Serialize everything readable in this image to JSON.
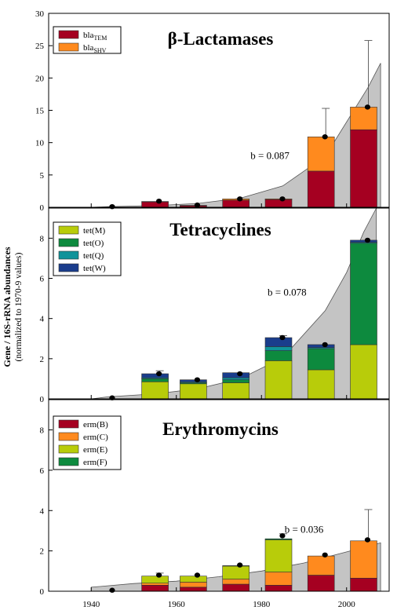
{
  "figure": {
    "ylabel_line1": "Gene / 16S-rRNA abundances",
    "ylabel_line2": "(normalized to 1970-9 values)",
    "x_ticks": [
      "1940",
      "1960",
      "1980",
      "2000"
    ]
  },
  "chart_data": [
    {
      "type": "bar",
      "stacked": true,
      "title": "β-Lactamases",
      "annotation": "b = 0.087",
      "legend": [
        {
          "main": "bla",
          "sub": "TEM",
          "color": "#a50021"
        },
        {
          "main": "bla",
          "sub": "SHV",
          "color": "#ff8a1e"
        }
      ],
      "x": [
        1944,
        1955,
        1964,
        1974,
        1984,
        1994,
        2004
      ],
      "series": [
        {
          "name": "blaTEM",
          "color": "#a50021",
          "values": [
            0,
            0.85,
            0.25,
            1.1,
            1.2,
            5.6,
            12.0
          ]
        },
        {
          "name": "blaSHV",
          "color": "#ff8a1e",
          "values": [
            0,
            0.05,
            0.05,
            0.2,
            0.1,
            5.3,
            3.5
          ]
        }
      ],
      "points": [
        0.1,
        0.95,
        0.35,
        1.3,
        1.3,
        10.9,
        15.5
      ],
      "error_up": [
        null,
        null,
        null,
        null,
        null,
        15.3,
        25.8
      ],
      "ylim": [
        0,
        30
      ],
      "yticks": [
        0,
        5,
        10,
        15,
        20,
        25,
        30
      ],
      "fit_label_pos": [
        1982,
        7.5
      ],
      "fit": {
        "type": "exponential",
        "b": 0.087,
        "points": [
          [
            1940,
            0.0
          ],
          [
            1944,
            0.1
          ],
          [
            1955,
            0.25
          ],
          [
            1965,
            0.6
          ],
          [
            1975,
            1.4
          ],
          [
            1985,
            3.3
          ],
          [
            1995,
            7.9
          ],
          [
            2005,
            18.5
          ],
          [
            2008,
            22.3
          ]
        ]
      }
    },
    {
      "type": "bar",
      "stacked": true,
      "title": "Tetracyclines",
      "annotation": "b = 0.078",
      "legend": [
        {
          "main": "tet(M)",
          "sub": "",
          "color": "#b8cc0a"
        },
        {
          "main": "tet(O)",
          "sub": "",
          "color": "#0d8a3e"
        },
        {
          "main": "tet(Q)",
          "sub": "",
          "color": "#10939a"
        },
        {
          "main": "tet(W)",
          "sub": "",
          "color": "#1a3d8c"
        }
      ],
      "x": [
        1944,
        1955,
        1964,
        1974,
        1984,
        1994,
        2004
      ],
      "series": [
        {
          "name": "tet(M)",
          "color": "#b8cc0a",
          "values": [
            0,
            0.85,
            0.75,
            0.8,
            1.9,
            1.45,
            2.7
          ]
        },
        {
          "name": "tet(O)",
          "color": "#0d8a3e",
          "values": [
            0,
            0.15,
            0.05,
            0.15,
            0.5,
            1.05,
            5.05
          ]
        },
        {
          "name": "tet(Q)",
          "color": "#10939a",
          "values": [
            0,
            0.05,
            0.05,
            0.1,
            0.2,
            0.05,
            0.05
          ]
        },
        {
          "name": "tet(W)",
          "color": "#1a3d8c",
          "values": [
            0,
            0.2,
            0.1,
            0.25,
            0.45,
            0.15,
            0.1
          ]
        }
      ],
      "points": [
        0.05,
        1.25,
        0.95,
        1.25,
        3.05,
        2.7,
        7.9
      ],
      "error_up": [
        null,
        1.4,
        null,
        null,
        3.15,
        null,
        null
      ],
      "ylim": [
        0,
        9.5
      ],
      "yticks": [
        0,
        2,
        4,
        6,
        8
      ],
      "fit_label_pos": [
        1986,
        5.15
      ],
      "fit": {
        "type": "exponential",
        "b": 0.078,
        "points": [
          [
            1940,
            0.0
          ],
          [
            1944,
            0.1
          ],
          [
            1955,
            0.25
          ],
          [
            1965,
            0.5
          ],
          [
            1975,
            1.0
          ],
          [
            1985,
            2.05
          ],
          [
            1995,
            4.4
          ],
          [
            2000,
            6.3
          ],
          [
            2004,
            8.3
          ],
          [
            2007,
            9.5
          ]
        ]
      }
    },
    {
      "type": "bar",
      "stacked": true,
      "title": "Erythromycins",
      "annotation": "b = 0.036",
      "legend": [
        {
          "main": "erm(B)",
          "sub": "",
          "color": "#a50021"
        },
        {
          "main": "erm(C)",
          "sub": "",
          "color": "#ff8a1e"
        },
        {
          "main": "erm(E)",
          "sub": "",
          "color": "#b8cc0a"
        },
        {
          "main": "erm(F)",
          "sub": "",
          "color": "#0d8a3e"
        }
      ],
      "x": [
        1944,
        1955,
        1964,
        1974,
        1984,
        1994,
        2004
      ],
      "series": [
        {
          "name": "erm(B)",
          "color": "#a50021",
          "values": [
            0,
            0.3,
            0.2,
            0.35,
            0.3,
            0.8,
            0.65
          ]
        },
        {
          "name": "erm(C)",
          "color": "#ff8a1e",
          "values": [
            0,
            0.1,
            0.25,
            0.25,
            0.65,
            0.95,
            1.85
          ]
        },
        {
          "name": "erm(E)",
          "color": "#b8cc0a",
          "values": [
            0,
            0.35,
            0.3,
            0.65,
            1.6,
            0.0,
            0.0
          ]
        },
        {
          "name": "erm(F)",
          "color": "#0d8a3e",
          "values": [
            0,
            0.0,
            0.0,
            0.02,
            0.05,
            0.0,
            0.0
          ]
        }
      ],
      "points": [
        0.05,
        0.8,
        0.8,
        1.3,
        2.75,
        1.8,
        2.55
      ],
      "error_up": [
        null,
        0.9,
        null,
        null,
        2.85,
        null,
        4.05
      ],
      "ylim": [
        0,
        9.5
      ],
      "yticks": [
        0,
        2,
        4,
        6,
        8
      ],
      "fit_label_pos": [
        1990,
        2.9
      ],
      "fit": {
        "type": "exponential",
        "b": 0.036,
        "points": [
          [
            1940,
            0.2
          ],
          [
            1950,
            0.38
          ],
          [
            1960,
            0.5
          ],
          [
            1970,
            0.72
          ],
          [
            1980,
            1.0
          ],
          [
            1990,
            1.4
          ],
          [
            2000,
            1.95
          ],
          [
            2008,
            2.4
          ]
        ]
      }
    }
  ]
}
